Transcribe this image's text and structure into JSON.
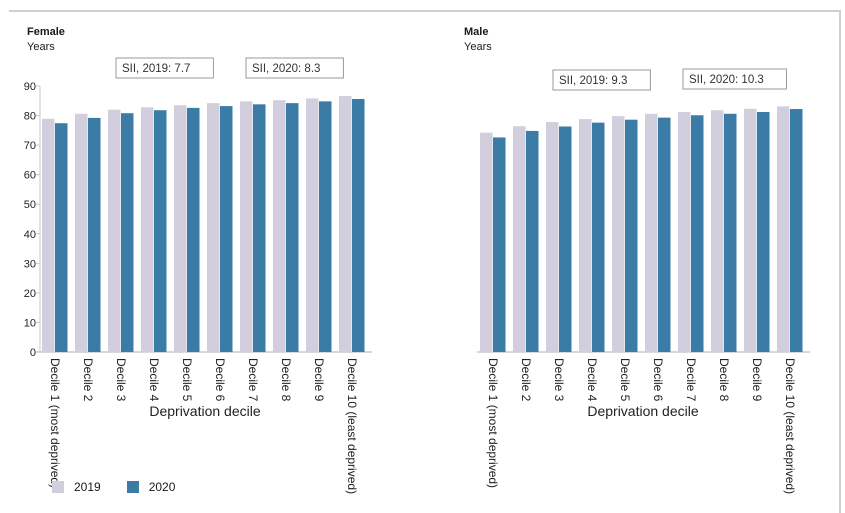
{
  "legend": {
    "items": [
      {
        "label": "2019",
        "color": "#d2cedd"
      },
      {
        "label": "2020",
        "color": "#3a7ca5"
      }
    ]
  },
  "chart_data": [
    {
      "type": "bar",
      "title": "Female",
      "ylabel": "Years",
      "xlabel": "Deprivation decile",
      "ylim": [
        0,
        90
      ],
      "yticks": [
        0,
        10,
        20,
        30,
        40,
        50,
        60,
        70,
        80,
        90
      ],
      "grid": false,
      "categories": [
        "Decile 1 (most deprived)",
        "Decile 2",
        "Decile 3",
        "Decile 4",
        "Decile 5",
        "Decile 6",
        "Decile 7",
        "Decile 8",
        "Decile 9",
        "Decile 10 (least deprived)"
      ],
      "series": [
        {
          "name": "2019",
          "values": [
            78.9,
            80.6,
            82.0,
            82.8,
            83.5,
            84.2,
            84.8,
            85.2,
            85.8,
            86.6
          ]
        },
        {
          "name": "2020",
          "values": [
            77.4,
            79.2,
            80.8,
            81.8,
            82.6,
            83.2,
            83.8,
            84.2,
            84.8,
            85.6
          ]
        }
      ],
      "annotations": [
        "SII, 2019: 7.7",
        "SII, 2020: 8.3"
      ]
    },
    {
      "type": "bar",
      "title": "Male",
      "ylabel": "Years",
      "xlabel": "Deprivation decile",
      "ylim": [
        0,
        90
      ],
      "grid": false,
      "categories": [
        "Decile 1 (most deprived)",
        "Decile 2",
        "Decile 3",
        "Decile 4",
        "Decile 5",
        "Decile 6",
        "Decile 7",
        "Decile 8",
        "Decile 9",
        "Decile 10 (least deprived)"
      ],
      "series": [
        {
          "name": "2019",
          "values": [
            74.2,
            76.4,
            77.8,
            78.8,
            79.8,
            80.6,
            81.2,
            81.8,
            82.3,
            83.1
          ]
        },
        {
          "name": "2020",
          "values": [
            72.6,
            74.8,
            76.3,
            77.6,
            78.6,
            79.3,
            80.1,
            80.6,
            81.2,
            82.2
          ]
        }
      ],
      "annotations": [
        "SII, 2019: 9.3",
        "SII, 2020: 10.3"
      ]
    }
  ]
}
